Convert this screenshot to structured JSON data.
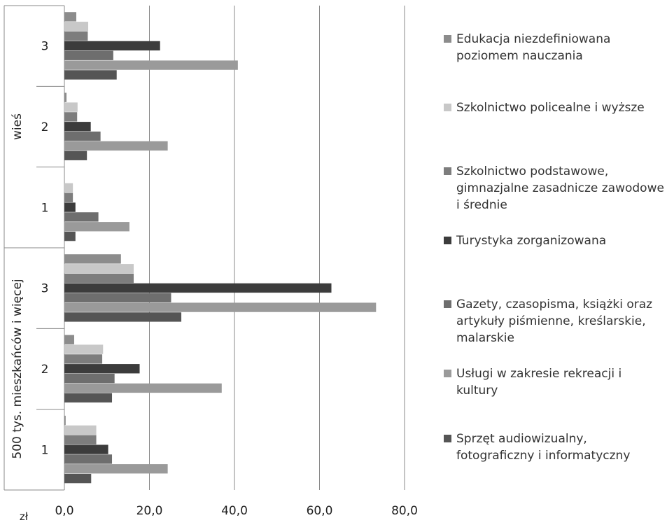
{
  "chart_data": {
    "type": "bar",
    "orientation": "horizontal",
    "xlabel": "zł",
    "xlim": [
      0,
      80
    ],
    "xticks": [
      "0,0",
      "20,0",
      "40,0",
      "60,0",
      "80,0"
    ],
    "grid": "vertical",
    "legend_position": "right",
    "groups": [
      {
        "label": "500 tys. mieszkańców i więcej",
        "categories": [
          "1",
          "2",
          "3"
        ]
      },
      {
        "label": "wieś",
        "categories": [
          "1",
          "2",
          "3"
        ]
      }
    ],
    "categories": [
      "500 tys. mieszkańców i więcej / 1",
      "500 tys. mieszkańców i więcej / 2",
      "500 tys. mieszkańców i więcej / 3",
      "wieś / 1",
      "wieś / 2",
      "wieś / 3"
    ],
    "series": [
      {
        "name": "Sprzęt audiowizualny, fotograficzny i informatyczny",
        "color": "#555555",
        "values": [
          6.3,
          11.2,
          27.5,
          2.6,
          5.3,
          12.3
        ]
      },
      {
        "name": "Usługi w zakresie rekreacji i kultury",
        "color": "#9a9a9a",
        "values": [
          24.3,
          37.0,
          73.3,
          15.3,
          24.3,
          40.8
        ]
      },
      {
        "name": "Gazety, czasopisma, książki oraz artykuły piśmienne, kreślarskie, malarskie",
        "color": "#6e6e6e",
        "values": [
          11.2,
          11.8,
          25.1,
          8.0,
          8.5,
          11.5
        ]
      },
      {
        "name": "Turystyka zorganizowana",
        "color": "#3c3c3c",
        "values": [
          10.3,
          17.7,
          62.8,
          2.6,
          6.2,
          22.5
        ]
      },
      {
        "name": "Szkolnictwo podstawowe, gimnazjalne zasadnicze zawodowe i średnie",
        "color": "#7d7d7d",
        "values": [
          7.5,
          8.9,
          16.3,
          2.0,
          3.0,
          5.5
        ]
      },
      {
        "name": "Szkolnictwo policealne i wyższe",
        "color": "#c8c8c8",
        "values": [
          7.5,
          9.1,
          16.3,
          2.0,
          3.1,
          5.6
        ]
      },
      {
        "name": "Edukacja niezdefiniowana poziomem nauczania",
        "color": "#8c8c8c",
        "values": [
          0.3,
          2.3,
          13.3,
          0.0,
          0.5,
          2.8
        ]
      }
    ]
  }
}
